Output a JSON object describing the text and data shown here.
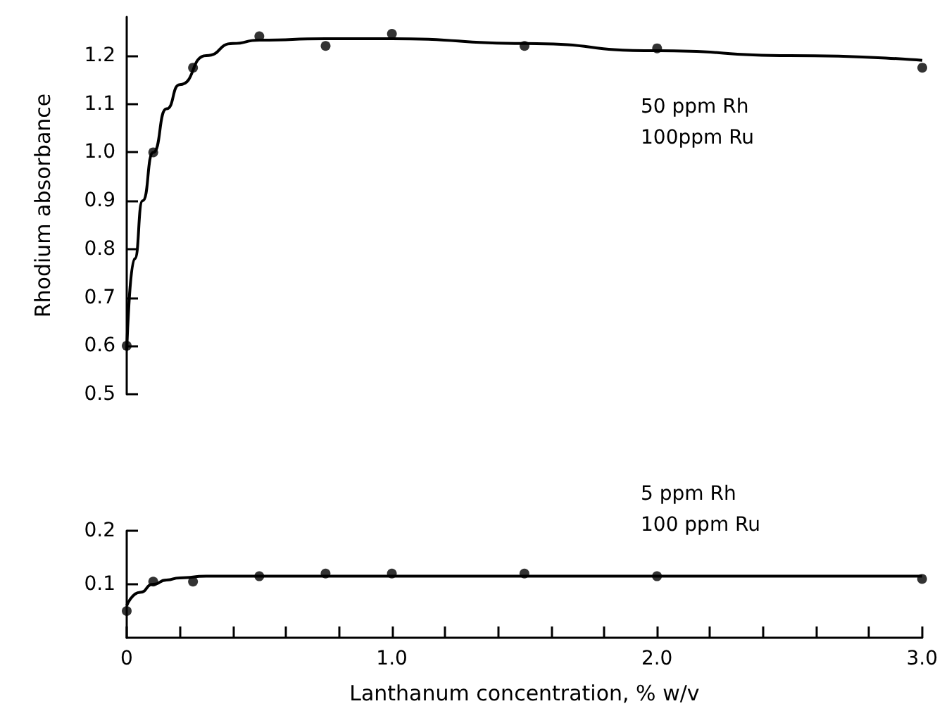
{
  "chart_data": [
    {
      "type": "scatter",
      "ylabel": "Rhodium absorbance",
      "annotations": [
        "50 ppm Rh\n100ppm Ru"
      ],
      "xlim": [
        0,
        3
      ],
      "ylim": [
        0.5,
        1.28
      ],
      "yticks": [
        0.5,
        0.6,
        0.7,
        0.8,
        0.9,
        {
          "value": 1.0,
          "label": "1.0"
        },
        1.1,
        1.2
      ],
      "tick_labels": "y",
      "grid": false,
      "series": [
        {
          "type": "scatter",
          "marker": "circle",
          "color": "#000000",
          "x": [
            0,
            0.1,
            0.25,
            0.5,
            0.75,
            1.0,
            1.5,
            2.0,
            3.0
          ],
          "values": [
            0.6,
            1.0,
            1.175,
            1.24,
            1.22,
            1.245,
            1.22,
            1.215,
            1.175
          ]
        },
        {
          "type": "line",
          "marker": "none",
          "color": "#000000",
          "x": [
            0,
            0.03,
            0.06,
            0.1,
            0.15,
            0.2,
            0.3,
            0.4,
            0.5,
            0.75,
            1.0,
            1.5,
            2.0,
            2.5,
            3.0
          ],
          "values": [
            0.59,
            0.78,
            0.9,
            1.0,
            1.09,
            1.14,
            1.2,
            1.225,
            1.232,
            1.235,
            1.235,
            1.225,
            1.21,
            1.2,
            1.19
          ]
        }
      ]
    },
    {
      "type": "scatter",
      "xlabel": "Lanthanum concentration, % w/v",
      "annotations": [
        "5 ppm Rh\n100 ppm Ru"
      ],
      "xlim": [
        0,
        3
      ],
      "xticks": [
        0,
        {
          "value": 0.2,
          "label": null
        },
        {
          "value": 0.4,
          "label": null
        },
        {
          "value": 0.6,
          "label": null
        },
        {
          "value": 0.8,
          "label": null
        },
        {
          "value": 1.0,
          "label": "1.0"
        },
        {
          "value": 1.2,
          "label": null
        },
        {
          "value": 1.4,
          "label": null
        },
        {
          "value": 1.6,
          "label": null
        },
        {
          "value": 1.8,
          "label": null
        },
        {
          "value": 2.0,
          "label": "2.0"
        },
        {
          "value": 2.2,
          "label": null
        },
        {
          "value": 2.4,
          "label": null
        },
        {
          "value": 2.6,
          "label": null
        },
        {
          "value": 2.8,
          "label": null
        },
        {
          "value": 3.0,
          "label": "3.0"
        }
      ],
      "ylim": [
        0,
        0.2
      ],
      "yticks": [
        {
          "value": 0.1,
          "label": "0.1"
        },
        {
          "value": 0.2,
          "label": "0.2"
        }
      ],
      "grid": false,
      "series": [
        {
          "type": "scatter",
          "marker": "circle",
          "color": "#000000",
          "x": [
            0,
            0.1,
            0.25,
            0.5,
            0.75,
            1.0,
            1.5,
            2.0,
            3.0
          ],
          "values": [
            0.05,
            0.105,
            0.105,
            0.115,
            0.12,
            0.12,
            0.12,
            0.115,
            0.11
          ]
        },
        {
          "type": "line",
          "marker": "none",
          "color": "#000000",
          "x": [
            0,
            0.05,
            0.1,
            0.15,
            0.2,
            0.3,
            0.5,
            1.0,
            2.0,
            3.0
          ],
          "values": [
            0.06,
            0.085,
            0.1,
            0.108,
            0.112,
            0.115,
            0.115,
            0.115,
            0.115,
            0.115
          ]
        }
      ]
    }
  ]
}
